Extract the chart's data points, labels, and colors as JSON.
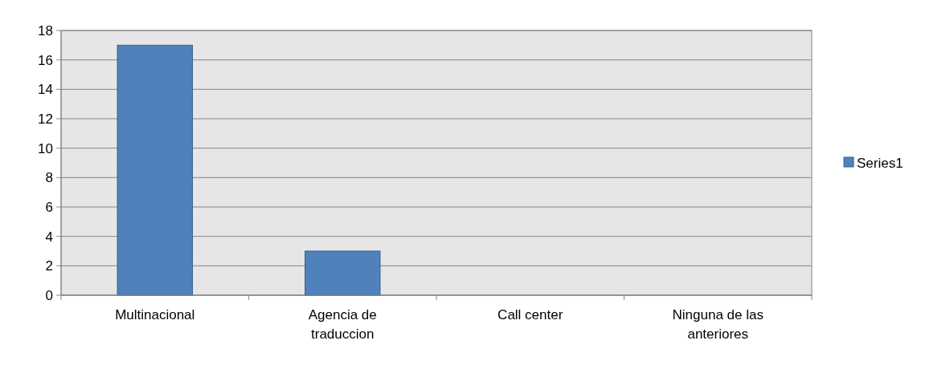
{
  "chart_data": {
    "type": "bar",
    "categories": [
      "Multinacional",
      "Agencia de traduccion",
      "Call center",
      "Ninguna de las anteriores"
    ],
    "series": [
      {
        "name": "Series1",
        "color": "#4f81bd",
        "values": [
          17,
          3,
          0,
          0
        ]
      }
    ],
    "ylim": [
      0,
      18
    ],
    "yticks": [
      0,
      2,
      4,
      6,
      8,
      10,
      12,
      14,
      16,
      18
    ],
    "grid": "y",
    "legend": "right"
  }
}
